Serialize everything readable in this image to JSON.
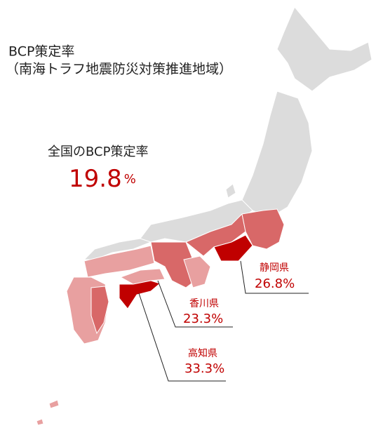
{
  "title": {
    "line1": "BCP策定率",
    "line2": "（南海トラフ地震防災対策推進地域）"
  },
  "national": {
    "label": "全国のBCP策定率",
    "value": 19.8,
    "unit": "%"
  },
  "prefectures": [
    {
      "name": "静岡県",
      "value": 26.8,
      "unit": "%"
    },
    {
      "name": "香川県",
      "value": 23.3,
      "unit": "%"
    },
    {
      "name": "高知県",
      "value": 33.3,
      "unit": "%"
    }
  ]
}
